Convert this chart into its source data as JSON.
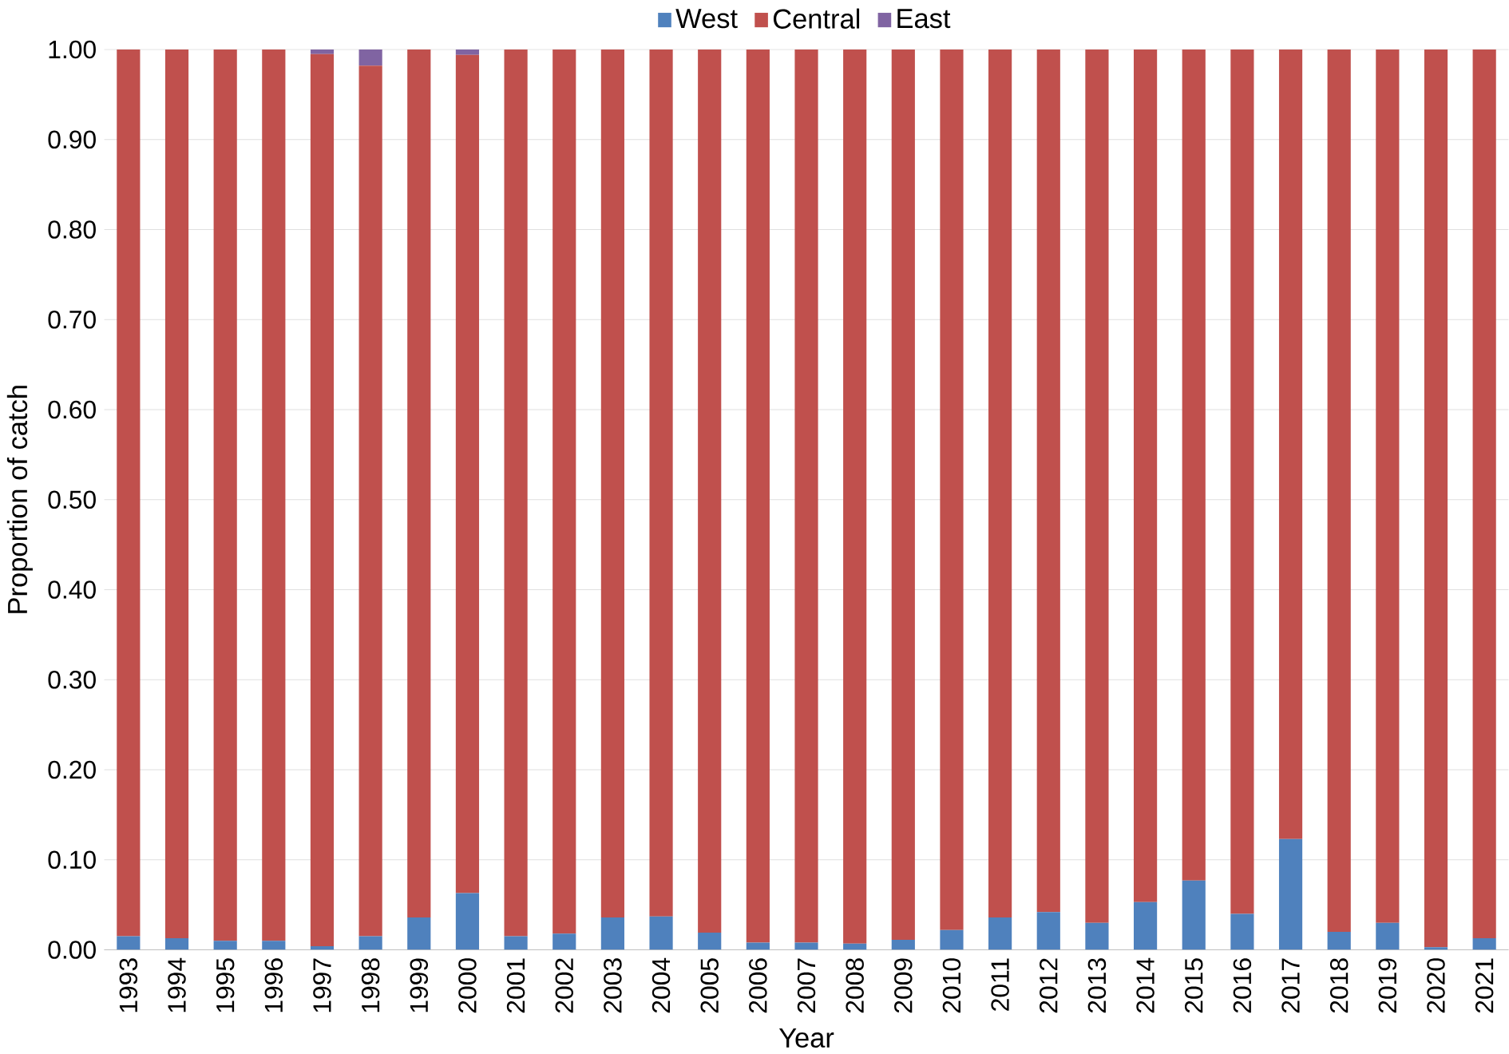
{
  "chart_data": {
    "type": "bar",
    "stacked": true,
    "xlabel": "Year",
    "ylabel": "Proportion of catch",
    "categories": [
      "1993",
      "1994",
      "1995",
      "1996",
      "1997",
      "1998",
      "1999",
      "2000",
      "2001",
      "2002",
      "2003",
      "2004",
      "2005",
      "2006",
      "2007",
      "2008",
      "2009",
      "2010",
      "2011",
      "2012",
      "2013",
      "2014",
      "2015",
      "2016",
      "2017",
      "2018",
      "2019",
      "2020",
      "2021"
    ],
    "series": [
      {
        "name": "West",
        "color": "#4f81bd",
        "values": [
          0.015,
          0.013,
          0.01,
          0.01,
          0.004,
          0.015,
          0.036,
          0.063,
          0.015,
          0.018,
          0.036,
          0.037,
          0.019,
          0.008,
          0.008,
          0.007,
          0.011,
          0.022,
          0.036,
          0.042,
          0.03,
          0.053,
          0.077,
          0.04,
          0.123,
          0.02,
          0.03,
          0.003,
          0.013
        ]
      },
      {
        "name": "Central",
        "color": "#c0504d",
        "values": [
          0.985,
          0.987,
          0.99,
          0.99,
          0.991,
          0.967,
          0.964,
          0.931,
          0.985,
          0.982,
          0.964,
          0.963,
          0.981,
          0.992,
          0.992,
          0.993,
          0.989,
          0.978,
          0.964,
          0.958,
          0.97,
          0.947,
          0.923,
          0.96,
          0.877,
          0.98,
          0.97,
          0.997,
          0.987
        ]
      },
      {
        "name": "East",
        "color": "#8064a2",
        "values": [
          0,
          0,
          0,
          0,
          0.005,
          0.018,
          0,
          0.006,
          0,
          0,
          0,
          0,
          0,
          0,
          0,
          0,
          0,
          0,
          0,
          0,
          0,
          0,
          0,
          0,
          0,
          0,
          0,
          0,
          0
        ]
      }
    ],
    "ylim": [
      0,
      1
    ],
    "yticks": [
      {
        "value": 0,
        "label": "0.00"
      },
      {
        "value": 0.1,
        "label": "0.10"
      },
      {
        "value": 0.2,
        "label": "0.20"
      },
      {
        "value": 0.3,
        "label": "0.30"
      },
      {
        "value": 0.4,
        "label": "0.40"
      },
      {
        "value": 0.5,
        "label": "0.50"
      },
      {
        "value": 0.6,
        "label": "0.60"
      },
      {
        "value": 0.7,
        "label": "0.70"
      },
      {
        "value": 0.8,
        "label": "0.80"
      },
      {
        "value": 0.9,
        "label": "0.90"
      },
      {
        "value": 1,
        "label": "1.00"
      }
    ],
    "grid": "y",
    "legend": "top"
  }
}
